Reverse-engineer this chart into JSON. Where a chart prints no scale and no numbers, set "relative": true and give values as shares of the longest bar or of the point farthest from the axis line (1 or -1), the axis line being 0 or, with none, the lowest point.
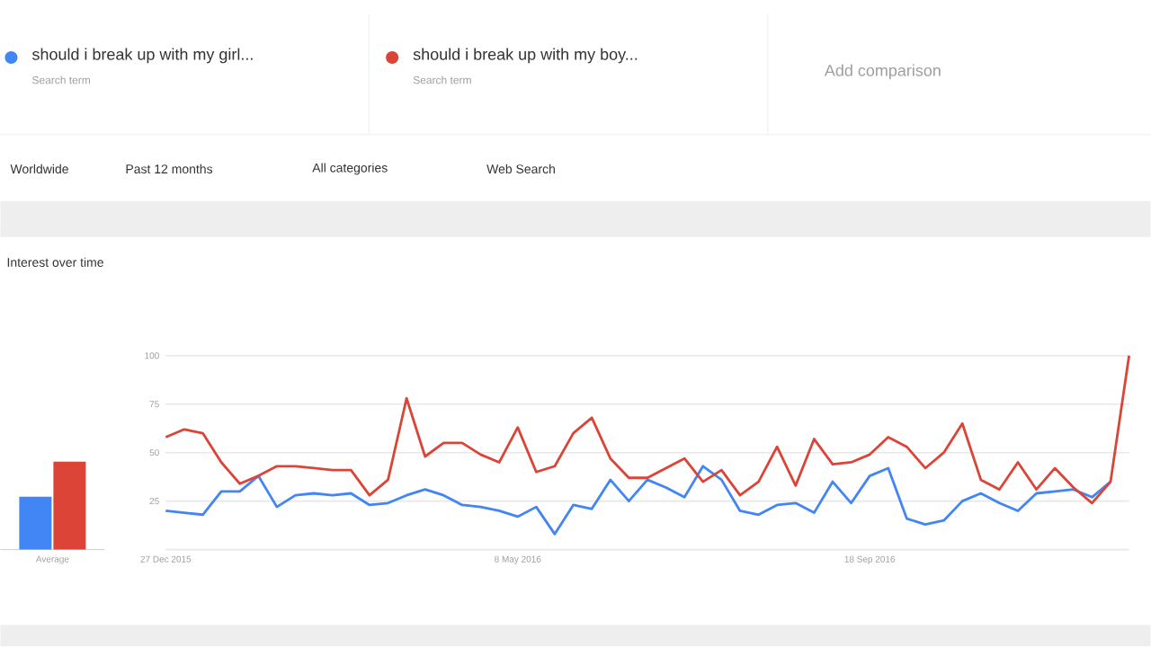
{
  "chart_data": [
    {
      "type": "line",
      "title": "Interest over time",
      "annotations": [
        "Search term",
        "Search term",
        "Add comparison",
        "Worldwide",
        "Past 12 months",
        "All categories",
        "Web Search"
      ],
      "x": [
        "2015-12-27",
        "2016-01-03",
        "2016-01-10",
        "2016-01-17",
        "2016-01-24",
        "2016-01-31",
        "2016-02-07",
        "2016-02-14",
        "2016-02-21",
        "2016-02-28",
        "2016-03-06",
        "2016-03-13",
        "2016-03-20",
        "2016-03-27",
        "2016-04-03",
        "2016-04-10",
        "2016-04-17",
        "2016-04-24",
        "2016-05-01",
        "2016-05-08",
        "2016-05-15",
        "2016-05-22",
        "2016-05-29",
        "2016-06-05",
        "2016-06-12",
        "2016-06-19",
        "2016-06-26",
        "2016-07-03",
        "2016-07-10",
        "2016-07-17",
        "2016-07-24",
        "2016-07-31",
        "2016-08-07",
        "2016-08-14",
        "2016-08-21",
        "2016-08-28",
        "2016-09-04",
        "2016-09-11",
        "2016-09-18",
        "2016-09-25",
        "2016-10-02",
        "2016-10-09",
        "2016-10-16",
        "2016-10-23",
        "2016-10-30",
        "2016-11-06",
        "2016-11-13",
        "2016-11-20",
        "2016-11-27",
        "2016-12-04",
        "2016-12-11",
        "2016-12-18",
        "2016-12-25"
      ],
      "series": [
        {
          "name": "should i break up with my girl...",
          "color": "#4285f4",
          "values": [
            20,
            19,
            18,
            30,
            30,
            38,
            22,
            28,
            29,
            28,
            29,
            23,
            24,
            28,
            31,
            28,
            23,
            22,
            20,
            17,
            22,
            8,
            23,
            21,
            36,
            25,
            36,
            32,
            27,
            43,
            36,
            20,
            18,
            23,
            24,
            19,
            35,
            24,
            38,
            42,
            16,
            13,
            15,
            25,
            29,
            24,
            20,
            29,
            30,
            31,
            27,
            35,
            null
          ]
        },
        {
          "name": "should i break up with my boy...",
          "color": "#db4437",
          "values": [
            58,
            62,
            60,
            45,
            34,
            38,
            43,
            43,
            42,
            41,
            41,
            28,
            36,
            78,
            48,
            55,
            55,
            49,
            45,
            63,
            40,
            43,
            60,
            68,
            47,
            37,
            37,
            42,
            47,
            35,
            41,
            28,
            35,
            53,
            33,
            57,
            44,
            45,
            49,
            58,
            53,
            42,
            50,
            65,
            36,
            31,
            45,
            31,
            42,
            32,
            24,
            35,
            100
          ]
        }
      ],
      "xlim": [
        "2015-12-27",
        "2016-12-25"
      ],
      "xticks": [
        {
          "value": "2015-12-27",
          "label": "27 Dec 2015"
        },
        {
          "value": "2016-05-08",
          "label": "8 May 2016"
        },
        {
          "value": "2016-09-18",
          "label": "18 Sep 2016"
        }
      ],
      "ylim": [
        0,
        100
      ],
      "yticks": [
        {
          "value": 0,
          "label": null
        },
        25,
        50,
        75,
        100
      ],
      "grid": "y",
      "legend": "top"
    },
    {
      "type": "bar",
      "relative": true,
      "categories": [
        "Average"
      ],
      "series": [
        {
          "color": "#4285f4",
          "values": [
            0.6
          ]
        },
        {
          "color": "#db4437",
          "values": [
            1
          ]
        }
      ]
    }
  ]
}
